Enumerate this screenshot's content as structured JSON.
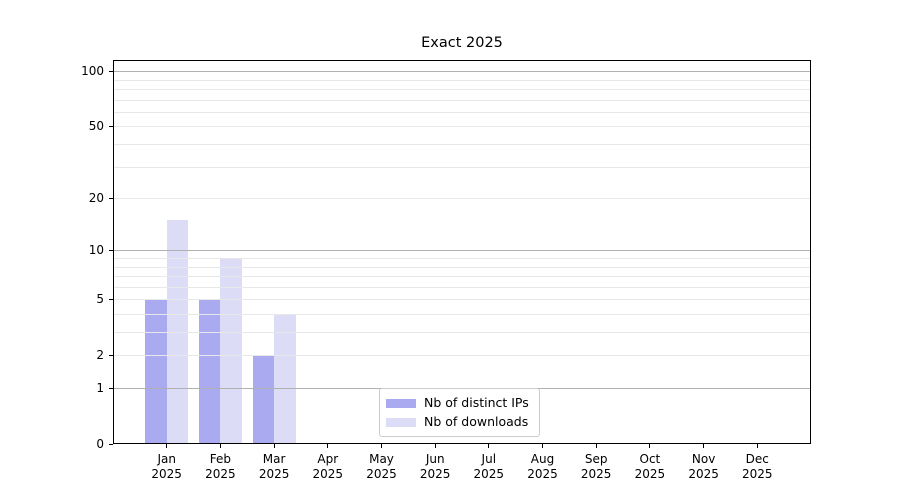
{
  "colors": {
    "background": "#ffffff",
    "axis": "#000000",
    "major_grid": "#b0b0b0",
    "minor_grid": "#e8e8e8",
    "legend_border": "#cccccc",
    "bar_distinct_ips": "#aaaaf0",
    "bar_downloads": "#dcdcf6"
  },
  "chart_data": {
    "type": "bar",
    "title": "Exact 2025",
    "xlabel": "",
    "ylabel": "",
    "categories": [
      "Jan 2025",
      "Feb 2025",
      "Mar 2025",
      "Apr 2025",
      "May 2025",
      "Jun 2025",
      "Jul 2025",
      "Aug 2025",
      "Sep 2025",
      "Oct 2025",
      "Nov 2025",
      "Dec 2025"
    ],
    "series": [
      {
        "name": "Nb of distinct IPs",
        "color": "#aaaaf0",
        "values": [
          5,
          5,
          2,
          0,
          0,
          0,
          0,
          0,
          0,
          0,
          0,
          0
        ]
      },
      {
        "name": "Nb of downloads",
        "color": "#dcdcf6",
        "values": [
          15,
          9,
          4,
          0,
          0,
          0,
          0,
          0,
          0,
          0,
          0,
          0
        ]
      }
    ],
    "yscale": "log1p",
    "ylim": [
      0,
      115
    ],
    "yticks": [
      0,
      1,
      2,
      5,
      10,
      20,
      50,
      100
    ],
    "grid": {
      "on": true,
      "major": [
        1,
        10,
        100
      ],
      "minor": [
        2,
        3,
        4,
        5,
        6,
        7,
        8,
        9,
        20,
        30,
        40,
        50,
        60,
        70,
        80,
        90
      ]
    },
    "legend_position": "lower center"
  }
}
